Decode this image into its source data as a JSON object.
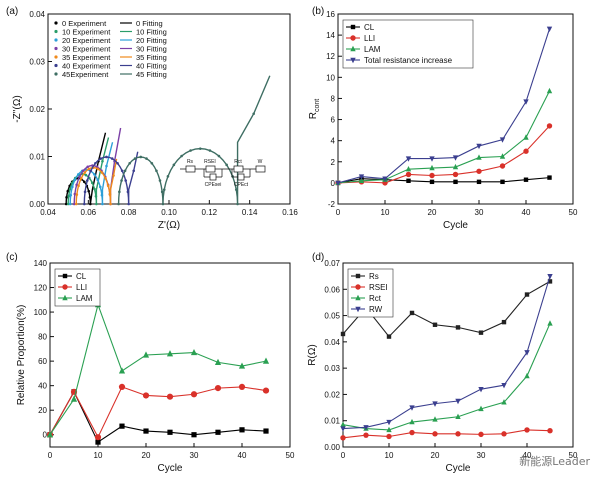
{
  "figure": {
    "watermark": "新能源Leader"
  },
  "chart_data": [
    {
      "panel": "(a)",
      "type": "scatter",
      "title": "",
      "xlabel": "Z'(Ω)",
      "ylabel": "-Z''(Ω)",
      "xlim": [
        0.04,
        0.16
      ],
      "ylim": [
        0,
        0.04
      ],
      "xticks": [
        "0.04",
        "0.06",
        "0.08",
        "0.10",
        "0.12",
        "0.14",
        "0.16"
      ],
      "yticks": [
        "0.00",
        "0.01",
        "0.02",
        "0.03",
        "0.04"
      ],
      "legend_placement": "top-left",
      "legend": [
        {
          "exp": "0 Experiment",
          "fit": "0 Fitting",
          "color": "#000000"
        },
        {
          "exp": "10 Experiment",
          "fit": "10 Fitting",
          "color": "#2a9d6a"
        },
        {
          "exp": "20 Experiment",
          "fit": "20 Fitting",
          "color": "#2b9fd8"
        },
        {
          "exp": "30 Experiment",
          "fit": "30 Fitting",
          "color": "#7b3fa6"
        },
        {
          "exp": "35 Experiment",
          "fit": "35 Fitting",
          "color": "#f08a1c"
        },
        {
          "exp": "40 Experiment",
          "fit": "40 Fitting",
          "color": "#3b3f8f"
        },
        {
          "exp": "45Experiment",
          "fit": "45 Fitting",
          "color": "#3e6e63"
        }
      ],
      "series": [
        {
          "color": "#000000",
          "rs": 0.049,
          "d": 0.012,
          "tail": [
            [
              0.062,
              0.003
            ],
            [
              0.065,
              0.009
            ],
            [
              0.0685,
              0.015
            ]
          ]
        },
        {
          "color": "#2a9d6a",
          "rs": 0.05,
          "d": 0.014,
          "tail": [
            [
              0.064,
              0.003
            ],
            [
              0.067,
              0.009
            ],
            [
              0.07,
              0.014
            ]
          ]
        },
        {
          "color": "#2b9fd8",
          "rs": 0.051,
          "d": 0.016,
          "tail": [
            [
              0.067,
              0.003
            ],
            [
              0.069,
              0.008
            ],
            [
              0.072,
              0.013
            ]
          ]
        },
        {
          "color": "#7b3fa6",
          "rs": 0.053,
          "d": 0.018,
          "tail": [
            [
              0.071,
              0.003
            ],
            [
              0.073,
              0.009
            ],
            [
              0.076,
              0.016
            ]
          ]
        },
        {
          "color": "#f08a1c",
          "rs": 0.054,
          "d": 0.017,
          "tail": [
            [
              0.071,
              0.003
            ],
            [
              0.0725,
              0.006
            ],
            [
              0.074,
              0.0095
            ]
          ]
        },
        {
          "color": "#3b3f8f",
          "rs": 0.058,
          "d": 0.022,
          "tail": [
            [
              0.08,
              0.003
            ],
            [
              0.0825,
              0.007
            ],
            [
              0.0845,
              0.011
            ]
          ]
        },
        {
          "color": "#3e6e63",
          "rs": 0.075,
          "d": 0.022,
          "d2": 0.037,
          "tail": [
            [
              0.134,
              0.013
            ],
            [
              0.142,
              0.019
            ],
            [
              0.15,
              0.027
            ]
          ]
        }
      ],
      "inset_labels": [
        "Rs",
        "RSEI",
        "CPEsei",
        "Rct",
        "CPEct",
        "W"
      ]
    },
    {
      "panel": "(b)",
      "type": "line",
      "title": "",
      "xlabel": "Cycle",
      "ylabel": "R",
      "ylabel_sub": "cont",
      "xlim": [
        0,
        50
      ],
      "ylim": [
        -2,
        16
      ],
      "xticks": [
        0,
        10,
        20,
        30,
        40,
        50
      ],
      "yticks": [
        -2,
        0,
        2,
        4,
        6,
        8,
        10,
        12,
        14,
        16
      ],
      "legend_placement": "top-left",
      "x": [
        0,
        5,
        10,
        15,
        20,
        25,
        30,
        35,
        40,
        45
      ],
      "series": [
        {
          "name": "CL",
          "color": "#000000",
          "marker": "square",
          "values": [
            0,
            0.4,
            0.3,
            0.2,
            0.1,
            0.1,
            0.1,
            0.1,
            0.3,
            0.5
          ]
        },
        {
          "name": "LLI",
          "color": "#d9312a",
          "marker": "circle",
          "values": [
            0,
            0.1,
            0.0,
            0.8,
            0.7,
            0.8,
            1.1,
            1.6,
            3.0,
            5.4
          ]
        },
        {
          "name": "LAM",
          "color": "#2aa052",
          "marker": "triangle",
          "values": [
            0,
            0.2,
            0.3,
            1.3,
            1.4,
            1.5,
            2.4,
            2.5,
            4.3,
            8.7
          ]
        },
        {
          "name": "Total resistance increase",
          "color": "#3b3f8f",
          "marker": "down-triangle",
          "values": [
            0,
            0.6,
            0.4,
            2.3,
            2.3,
            2.4,
            3.5,
            4.1,
            7.7,
            14.6
          ]
        }
      ]
    },
    {
      "panel": "(c)",
      "type": "line",
      "title": "",
      "xlabel": "Cycle",
      "ylabel": "Relative Proportion(%)",
      "xlim": [
        0,
        50
      ],
      "ylim": [
        -10,
        140
      ],
      "xticks": [
        0,
        10,
        20,
        30,
        40,
        50
      ],
      "yticks": [
        0,
        20,
        40,
        60,
        80,
        100,
        120,
        140
      ],
      "legend_placement": "top-left",
      "x": [
        0,
        5,
        10,
        15,
        20,
        25,
        30,
        35,
        40,
        45
      ],
      "series": [
        {
          "name": "CL",
          "color": "#000000",
          "marker": "square",
          "values": [
            0,
            35,
            -6,
            7,
            3,
            2,
            0,
            2,
            4,
            3
          ]
        },
        {
          "name": "LLI",
          "color": "#d9312a",
          "marker": "circle",
          "values": [
            0,
            35,
            -2,
            39,
            32,
            31,
            33,
            38,
            39,
            36
          ]
        },
        {
          "name": "LAM",
          "color": "#2aa052",
          "marker": "triangle",
          "values": [
            0,
            29,
            106,
            52,
            65,
            66,
            67,
            59,
            56,
            60
          ]
        }
      ]
    },
    {
      "panel": "(d)",
      "type": "line",
      "title": "",
      "xlabel": "Cycle",
      "ylabel": "R(Ω)",
      "xlim": [
        0,
        50
      ],
      "ylim": [
        0,
        0.07
      ],
      "xticks": [
        0,
        10,
        20,
        30,
        40,
        50
      ],
      "yticks": [
        "0.00",
        "0.01",
        "0.02",
        "0.03",
        "0.04",
        "0.05",
        "0.06",
        "0.07"
      ],
      "legend_placement": "top-left",
      "x": [
        0,
        5,
        10,
        15,
        20,
        25,
        30,
        35,
        40,
        45
      ],
      "series": [
        {
          "name": "Rs",
          "color": "#222222",
          "marker": "square",
          "values": [
            0.043,
            0.053,
            0.042,
            0.051,
            0.0465,
            0.0455,
            0.0435,
            0.0475,
            0.058,
            0.063
          ]
        },
        {
          "name": "RSEI",
          "color": "#d9312a",
          "marker": "circle",
          "values": [
            0.0035,
            0.0045,
            0.004,
            0.0055,
            0.005,
            0.005,
            0.0048,
            0.005,
            0.0065,
            0.0062
          ]
        },
        {
          "name": "Rct",
          "color": "#2aa052",
          "marker": "triangle",
          "values": [
            0.0085,
            0.007,
            0.0065,
            0.0095,
            0.0105,
            0.0115,
            0.0145,
            0.017,
            0.027,
            0.047
          ]
        },
        {
          "name": "RW",
          "color": "#3b3f8f",
          "marker": "down-triangle",
          "values": [
            0.007,
            0.0075,
            0.0095,
            0.015,
            0.0165,
            0.0175,
            0.022,
            0.0235,
            0.036,
            0.065
          ]
        }
      ]
    }
  ]
}
